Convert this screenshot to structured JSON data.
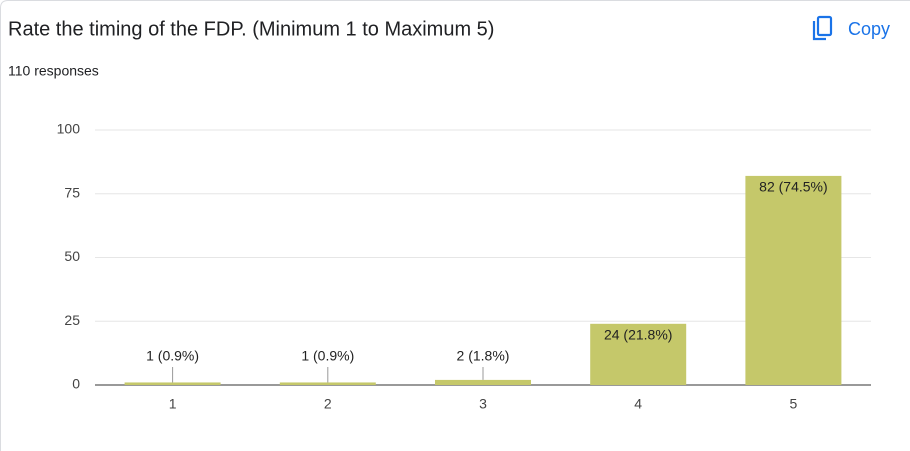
{
  "copy_button": "Copy",
  "chart_data": {
    "type": "bar",
    "title": "Rate the timing of the FDP. (Minimum 1 to Maximum 5)",
    "subtitle": "110 responses",
    "categories": [
      "1",
      "2",
      "3",
      "4",
      "5"
    ],
    "values": [
      1,
      1,
      2,
      24,
      82
    ],
    "value_labels": [
      "1 (0.9%)",
      "1 (0.9%)",
      "2 (1.8%)",
      "24 (21.8%)",
      "82 (74.5%)"
    ],
    "color": "#c5c86a",
    "ylim": [
      0,
      100
    ],
    "yticks": [
      0,
      25,
      50,
      75,
      100
    ],
    "grid": true
  }
}
